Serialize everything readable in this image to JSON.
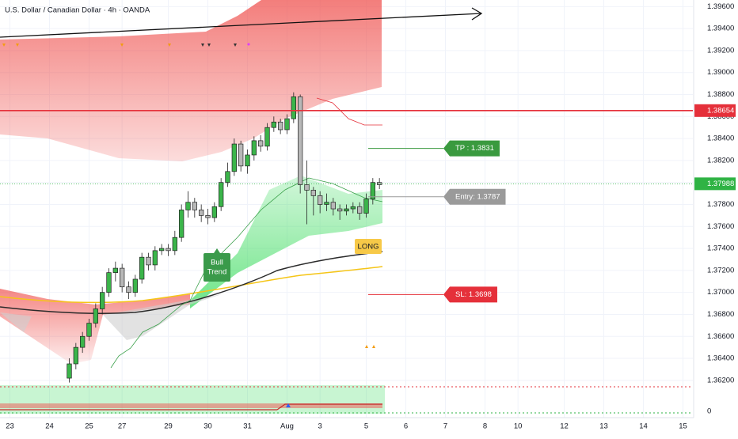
{
  "chart_data": {
    "type": "candlestick",
    "title": "U.S. Dollar / Canadian Dollar · 4h · OANDA",
    "up_color": "#3bb54a",
    "down_color": "#b8b8b8",
    "x": [
      9,
      10,
      11,
      12,
      13,
      14,
      15,
      16,
      17,
      18,
      19,
      20,
      21,
      22,
      23,
      24,
      25,
      26,
      27,
      28,
      29,
      30,
      31,
      32,
      33,
      34,
      35,
      36,
      37,
      38,
      39,
      40,
      41,
      42,
      43,
      44,
      45,
      46,
      47,
      48,
      49,
      50,
      51,
      52,
      53,
      54,
      55,
      56
    ],
    "open": [
      1.3622,
      1.3635,
      1.365,
      1.366,
      1.3672,
      1.3685,
      1.37,
      1.3718,
      1.3722,
      1.3705,
      1.37,
      1.3712,
      1.3732,
      1.3725,
      1.3738,
      1.374,
      1.3738,
      1.375,
      1.3775,
      1.3782,
      1.3775,
      1.377,
      1.3768,
      1.3778,
      1.38,
      1.381,
      1.3835,
      1.3815,
      1.3825,
      1.3838,
      1.3833,
      1.385,
      1.3855,
      1.3848,
      1.3858,
      1.3878,
      1.3798,
      1.3793,
      1.3788,
      1.378,
      1.3782,
      1.3776,
      1.3774,
      1.3776,
      1.3778,
      1.3772,
      1.3785,
      1.38
    ],
    "high": [
      1.364,
      1.3654,
      1.3664,
      1.3676,
      1.369,
      1.3705,
      1.3722,
      1.3728,
      1.3726,
      1.371,
      1.3716,
      1.3736,
      1.3736,
      1.3742,
      1.3744,
      1.3744,
      1.3756,
      1.378,
      1.3792,
      1.3786,
      1.378,
      1.3776,
      1.3782,
      1.3804,
      1.3818,
      1.384,
      1.3838,
      1.383,
      1.3842,
      1.3843,
      1.3854,
      1.386,
      1.3858,
      1.3862,
      1.3882,
      1.388,
      1.382,
      1.3796,
      1.3792,
      1.379,
      1.3786,
      1.378,
      1.378,
      1.3782,
      1.3782,
      1.379,
      1.3804,
      1.3804
    ],
    "low": [
      1.3618,
      1.363,
      1.3645,
      1.3656,
      1.3668,
      1.368,
      1.3696,
      1.371,
      1.37,
      1.3694,
      1.3696,
      1.3708,
      1.372,
      1.372,
      1.3734,
      1.3733,
      1.3734,
      1.3746,
      1.3768,
      1.3768,
      1.3764,
      1.3762,
      1.3764,
      1.3774,
      1.3796,
      1.3806,
      1.381,
      1.3808,
      1.382,
      1.3828,
      1.3829,
      1.3846,
      1.3844,
      1.3844,
      1.3854,
      1.379,
      1.3762,
      1.377,
      1.3772,
      1.3774,
      1.377,
      1.3766,
      1.377,
      1.3772,
      1.3766,
      1.3768,
      1.378,
      1.3794
    ],
    "close": [
      1.3635,
      1.365,
      1.366,
      1.3672,
      1.3685,
      1.37,
      1.3718,
      1.3722,
      1.3705,
      1.37,
      1.3712,
      1.3732,
      1.3725,
      1.3738,
      1.374,
      1.3738,
      1.375,
      1.3775,
      1.3782,
      1.3775,
      1.377,
      1.3768,
      1.3778,
      1.38,
      1.381,
      1.3835,
      1.3815,
      1.3825,
      1.3838,
      1.3833,
      1.385,
      1.3855,
      1.3848,
      1.3858,
      1.3878,
      1.3798,
      1.3793,
      1.3788,
      1.378,
      1.3782,
      1.3776,
      1.3774,
      1.3776,
      1.3778,
      1.3772,
      1.3785,
      1.38,
      1.3798
    ],
    "xlim": [
      -1.5,
      103.5
    ],
    "ylim": [
      1.3617,
      1.3966
    ],
    "xticks": [
      {
        "value": 0,
        "label": "23"
      },
      {
        "value": 6,
        "label": "24"
      },
      {
        "value": 12,
        "label": "25"
      },
      {
        "value": 17,
        "label": "27"
      },
      {
        "value": 24,
        "label": "29"
      },
      {
        "value": 30,
        "label": "30"
      },
      {
        "value": 36,
        "label": "31"
      },
      {
        "value": 42,
        "label": "Aug"
      },
      {
        "value": 47,
        "label": "3"
      },
      {
        "value": 54,
        "label": "5"
      },
      {
        "value": 60,
        "label": "6"
      },
      {
        "value": 66,
        "label": "7"
      },
      {
        "value": 72,
        "label": "8"
      },
      {
        "value": 77,
        "label": "10"
      },
      {
        "value": 84,
        "label": "12"
      },
      {
        "value": 90,
        "label": "13"
      },
      {
        "value": 96,
        "label": "14"
      },
      {
        "value": 102,
        "label": "15"
      }
    ],
    "yticks": [
      {
        "value": 1.362,
        "label": "1.36200"
      },
      {
        "value": 1.364,
        "label": "1.36400"
      },
      {
        "value": 1.366,
        "label": "1.36600"
      },
      {
        "value": 1.368,
        "label": "1.36800"
      },
      {
        "value": 1.37,
        "label": "1.37000"
      },
      {
        "value": 1.372,
        "label": "1.37200"
      },
      {
        "value": 1.374,
        "label": "1.37400"
      },
      {
        "value": 1.376,
        "label": "1.37600"
      },
      {
        "value": 1.378,
        "label": "1.37800"
      },
      {
        "value": 1.38,
        "label": "1.38000"
      },
      {
        "value": 1.382,
        "label": "1.38200"
      },
      {
        "value": 1.384,
        "label": "1.38400"
      },
      {
        "value": 1.386,
        "label": "1.38600"
      },
      {
        "value": 1.388,
        "label": "1.38800"
      },
      {
        "value": 1.39,
        "label": "1.39000"
      },
      {
        "value": 1.392,
        "label": "1.39200"
      },
      {
        "value": 1.394,
        "label": "1.39400"
      },
      {
        "value": 1.396,
        "label": "1.39600"
      }
    ],
    "grid": true,
    "price_lines": [
      {
        "value": 1.38654,
        "label": "1.38654",
        "color": "#e5303a"
      },
      {
        "value": 1.37988,
        "label": "1.37988",
        "color": "#2fb344"
      }
    ],
    "trade_levels": [
      {
        "value": 1.3831,
        "label": "TP : 1.3831",
        "color": "#3a9a3f"
      },
      {
        "value": 1.3787,
        "label": "Entry: 1.3787",
        "color": "#9a9a9a"
      },
      {
        "value": 1.3698,
        "label": "SL: 1.3698",
        "color": "#e5303a"
      }
    ],
    "annotations": {
      "bull": [
        "Bull",
        "Trend"
      ],
      "long": "LONG"
    },
    "indicator_ticks": [
      0
    ]
  }
}
